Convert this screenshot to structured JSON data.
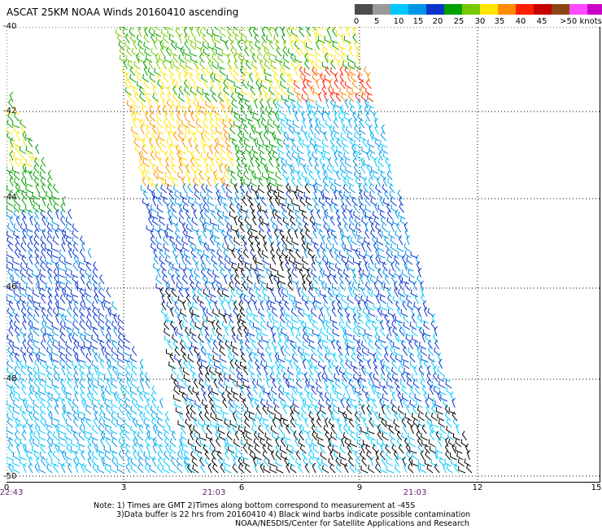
{
  "title": "ASCAT 25KM NOAA Winds 20160410 ascending",
  "legend": {
    "bins": [
      {
        "color": "#4d4d4d"
      },
      {
        "color": "#9a9a9a"
      },
      {
        "color": "#00c8ff"
      },
      {
        "color": "#0096e6"
      },
      {
        "color": "#0a34cc"
      },
      {
        "color": "#00a000"
      },
      {
        "color": "#78c800"
      },
      {
        "color": "#ffe600"
      },
      {
        "color": "#ff8c00"
      },
      {
        "color": "#ff1e00"
      },
      {
        "color": "#c80000"
      },
      {
        "color": "#8c4614"
      },
      {
        "color": "#ff4bff"
      },
      {
        "color": "#c800c8"
      },
      {
        "color": "#640096"
      }
    ],
    "labels": [
      "0",
      "5",
      "10",
      "15",
      "20",
      "25",
      "30",
      "35",
      "40",
      "45",
      ">50 knots"
    ]
  },
  "map": {
    "lat_labels": [
      "-40",
      "-42",
      "-44",
      "-46",
      "-48",
      "-50"
    ],
    "lon_labels": [
      "0",
      "3",
      "6",
      "9",
      "12",
      "15"
    ],
    "time_labels": [
      "22:43",
      "21:03",
      "21:03"
    ]
  },
  "notes": [
    "Note: 1) Times are GMT 2)Times along bottom correspond to measurement at -45S",
    "3)Data buffer is 22 hrs from 20160410 4) Black wind barbs indicate possible contamination",
    "NOAA/NESDIS/Center for Satellite Applications and Research"
  ]
}
